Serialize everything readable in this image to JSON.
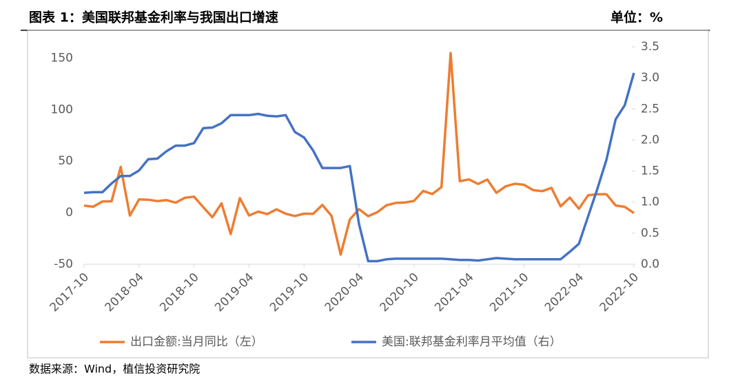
{
  "header": {
    "title": "图表 1：美国联邦基金利率与我国出口增速",
    "unit": "单位：%"
  },
  "footer": {
    "source": "数据来源：Wind，植信投资研究院"
  },
  "chart_data": {
    "type": "line",
    "categories": [
      "2017-10",
      null,
      null,
      null,
      null,
      null,
      "2018-04",
      null,
      null,
      null,
      null,
      null,
      "2018-10",
      null,
      null,
      null,
      null,
      null,
      "2019-04",
      null,
      null,
      null,
      null,
      null,
      "2019-10",
      null,
      null,
      null,
      null,
      null,
      "2020-04",
      null,
      null,
      null,
      null,
      null,
      "2020-10",
      null,
      null,
      null,
      null,
      null,
      "2021-04",
      null,
      null,
      null,
      null,
      null,
      "2021-10",
      null,
      null,
      null,
      null,
      null,
      "2022-04",
      null,
      null,
      null,
      null,
      null,
      "2022-10"
    ],
    "series": [
      {
        "name": "出口金额:当月同比（左）",
        "color": "#ed7d31",
        "axis": "y",
        "values": [
          6.9,
          5.8,
          10.9,
          11.1,
          44.5,
          -2.7,
          12.9,
          12.6,
          11.3,
          12.2,
          9.8,
          14.5,
          15.6,
          5.4,
          -4.4,
          9.1,
          -20.7,
          14.2,
          -2.7,
          1.1,
          -1.3,
          3.3,
          -1.0,
          -3.2,
          -0.9,
          -1.1,
          7.6,
          -3.0,
          -40.6,
          -6.6,
          3.5,
          -3.3,
          0.5,
          7.2,
          9.5,
          9.9,
          11.4,
          21.1,
          18.1,
          24.9,
          154.9,
          30.6,
          32.3,
          27.9,
          32.2,
          19.3,
          25.6,
          28.1,
          27.1,
          22.0,
          20.9,
          24.1,
          6.2,
          14.7,
          3.9,
          16.9,
          17.9,
          18.0,
          7.1,
          5.7,
          -0.3
        ]
      },
      {
        "name": "美国:联邦基金利率月平均值（右）",
        "color": "#4472c4",
        "axis": "y2",
        "values": [
          1.15,
          1.16,
          1.16,
          1.3,
          1.42,
          1.42,
          1.51,
          1.69,
          1.7,
          1.82,
          1.91,
          1.91,
          1.95,
          2.19,
          2.2,
          2.27,
          2.4,
          2.4,
          2.4,
          2.42,
          2.39,
          2.38,
          2.4,
          2.13,
          2.04,
          1.83,
          1.55,
          1.55,
          1.55,
          1.58,
          0.65,
          0.05,
          0.05,
          0.08,
          0.09,
          0.09,
          0.09,
          0.09,
          0.09,
          0.09,
          0.08,
          0.07,
          0.07,
          0.06,
          0.08,
          0.1,
          0.09,
          0.08,
          0.08,
          0.08,
          0.08,
          0.08,
          0.08,
          0.2,
          0.33,
          0.77,
          1.21,
          1.68,
          2.33,
          2.56,
          3.08
        ]
      }
    ],
    "ylim": [
      -50,
      161
    ],
    "yticks": [
      -50,
      0,
      50,
      100,
      150
    ],
    "y2lim": [
      0,
      3.5
    ],
    "y2ticks": [
      {
        "value": 0,
        "label": "0.0"
      },
      {
        "value": 0.5,
        "label": "0.5"
      },
      {
        "value": 1,
        "label": "1.0"
      },
      {
        "value": 1.5,
        "label": "1.5"
      },
      {
        "value": 2,
        "label": "2.0"
      },
      {
        "value": 2.5,
        "label": "2.5"
      },
      {
        "value": 3,
        "label": "3.0"
      },
      {
        "value": 3.5,
        "label": "3.5"
      }
    ],
    "legend": "bottom"
  }
}
